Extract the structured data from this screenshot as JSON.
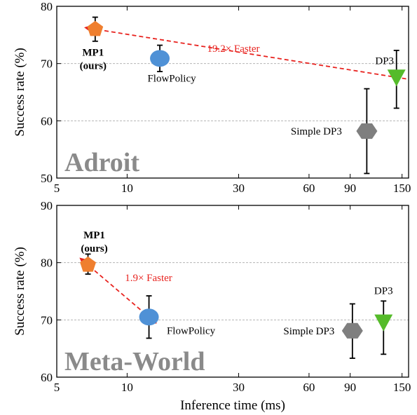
{
  "colors": {
    "orange": "#ef7f2f",
    "blue": "#4f91d6",
    "green": "#55bb2a",
    "gray": "#7f7f7f",
    "arrow": "#e8231f",
    "grid": "#b5b5b5",
    "watermark": "#8a8a8a"
  },
  "chart_data": [
    {
      "type": "scatter",
      "title": "Adroit",
      "xlabel": "",
      "ylabel": "Success rate (%)",
      "xscale": "log",
      "xlim": [
        5,
        160
      ],
      "ylim": [
        50,
        80
      ],
      "xticks": [
        5,
        10,
        30,
        60,
        90,
        150
      ],
      "xtick_labels": [
        "5",
        "10",
        "30",
        "60",
        "90",
        "150"
      ],
      "yticks": [
        50,
        60,
        70,
        80
      ],
      "ytick_labels": [
        "50",
        "60",
        "70",
        "80"
      ],
      "grid": "horizontal dashed at 60 and 70",
      "points": [
        {
          "name": "MP1",
          "sub": "(ours)",
          "x": 7.3,
          "y": 76.0,
          "err_low": 73.9,
          "err_high": 78.1,
          "marker": "pentagon",
          "color": "orange",
          "bold": true
        },
        {
          "name": "FlowPolicy",
          "x": 13.8,
          "y": 70.9,
          "err_low": 68.6,
          "err_high": 73.2,
          "marker": "circle",
          "color": "blue"
        },
        {
          "name": "DP3",
          "x": 142,
          "y": 67.6,
          "err_low": 62.2,
          "err_high": 72.3,
          "marker": "triangle-down",
          "color": "green"
        },
        {
          "name": "Simple DP3",
          "x": 106,
          "y": 58.2,
          "err_low": 50.8,
          "err_high": 65.6,
          "marker": "hexagon",
          "color": "gray"
        }
      ],
      "arrow": {
        "from": "DP3",
        "to": "MP1",
        "label": "19.2× Faster"
      }
    },
    {
      "type": "scatter",
      "title": "Meta-World",
      "xlabel": "Inference time (ms)",
      "ylabel": "Success rate (%)",
      "xscale": "log",
      "xlim": [
        5,
        160
      ],
      "ylim": [
        60,
        90
      ],
      "xticks": [
        5,
        10,
        30,
        60,
        90,
        150
      ],
      "xtick_labels": [
        "5",
        "10",
        "30",
        "60",
        "90",
        "150"
      ],
      "yticks": [
        60,
        70,
        80,
        90
      ],
      "ytick_labels": [
        "60",
        "70",
        "80",
        "90"
      ],
      "grid": "horizontal dashed at 70 and 80",
      "points": [
        {
          "name": "MP1",
          "sub": "(ours)",
          "x": 6.8,
          "y": 79.6,
          "err_low": 78.0,
          "err_high": 81.5,
          "marker": "pentagon",
          "color": "orange",
          "bold": true
        },
        {
          "name": "FlowPolicy",
          "x": 12.4,
          "y": 70.5,
          "err_low": 66.8,
          "err_high": 74.2,
          "marker": "circle",
          "color": "blue"
        },
        {
          "name": "DP3",
          "x": 125,
          "y": 69.6,
          "err_low": 64.0,
          "err_high": 73.3,
          "marker": "triangle-down",
          "color": "green"
        },
        {
          "name": "Simple DP3",
          "x": 92,
          "y": 68.1,
          "err_low": 63.3,
          "err_high": 72.8,
          "marker": "hexagon",
          "color": "gray"
        }
      ],
      "arrow": {
        "from": "FlowPolicy",
        "to": "MP1",
        "label": "1.9× Faster"
      }
    }
  ]
}
